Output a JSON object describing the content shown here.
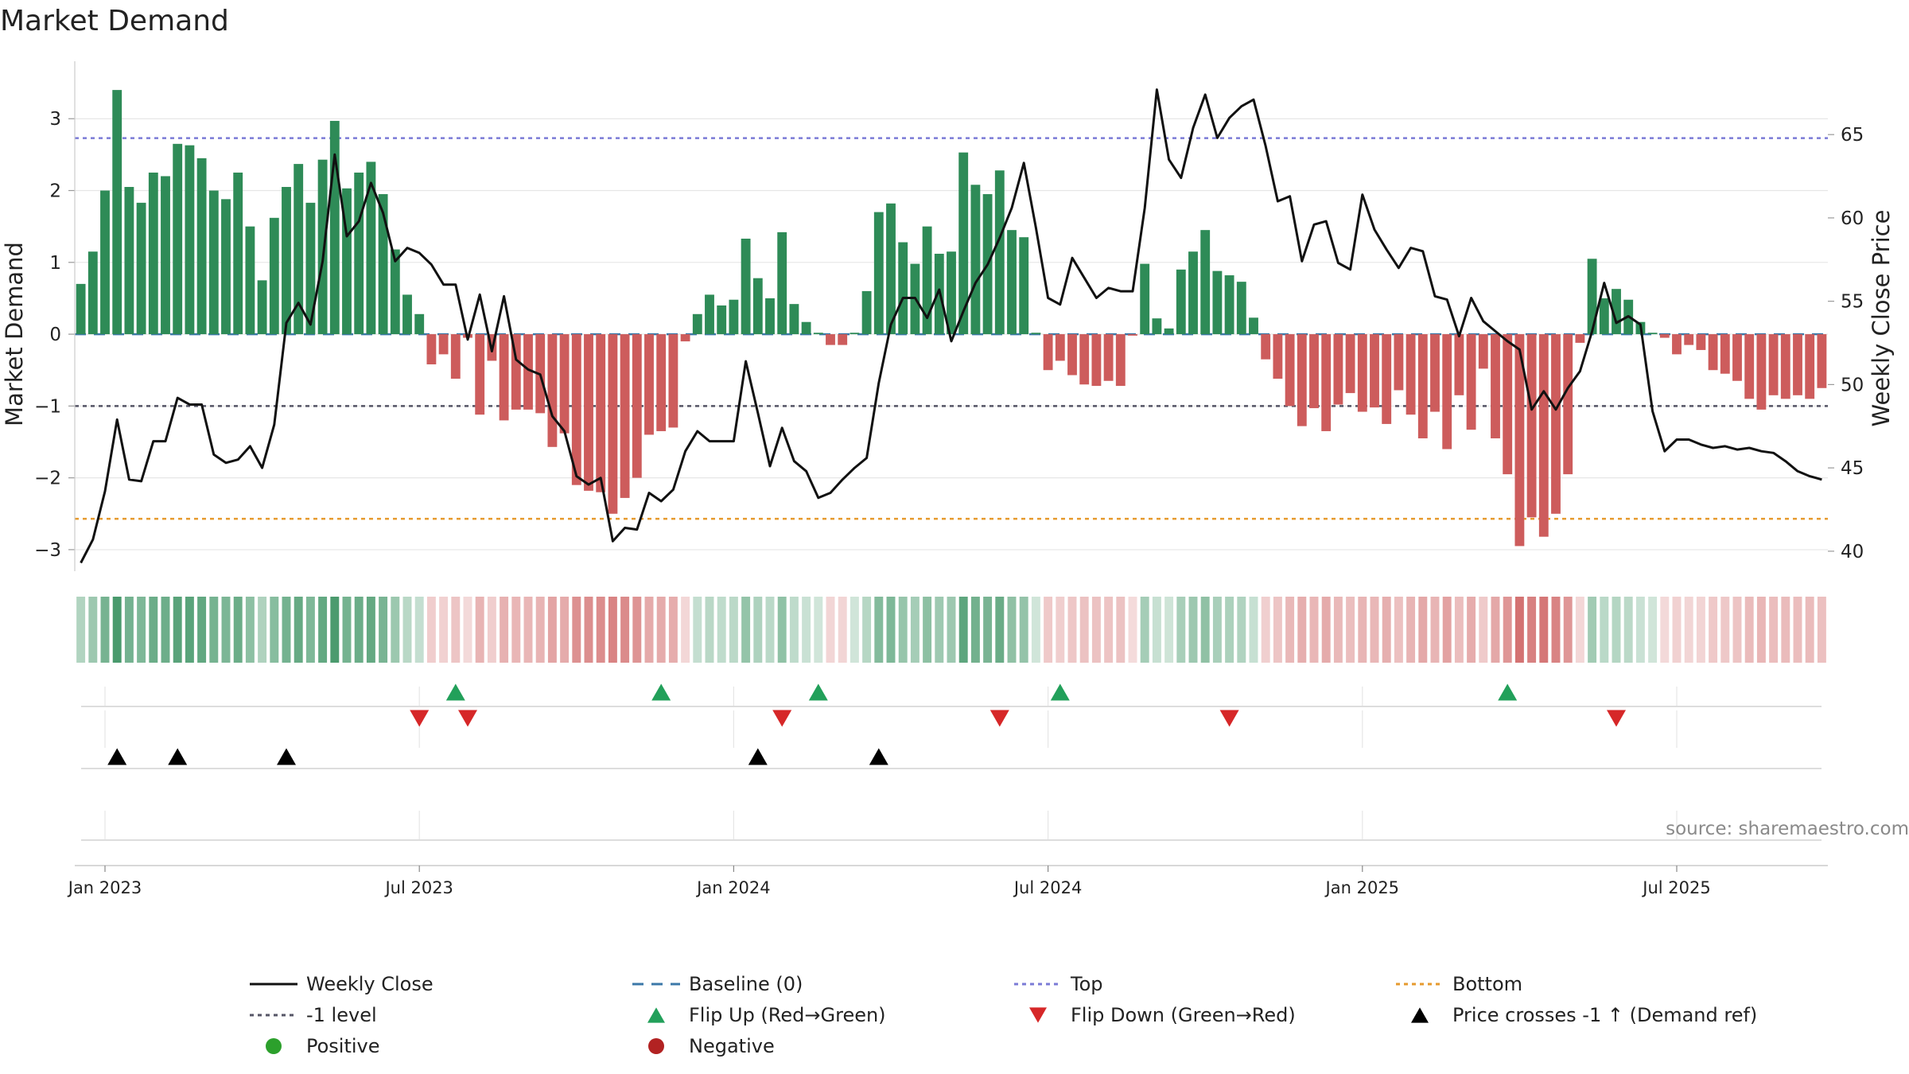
{
  "chart_data": {
    "type": "bar",
    "title": "Market Demand",
    "ylabel": "Market Demand",
    "ylabel_right": "Weekly Close Price",
    "source": "source: sharemaestro.com",
    "ylim": [
      -3.3,
      3.8
    ],
    "y2lim": [
      38.8,
      69.4
    ],
    "yticks": [
      {
        "v": -3,
        "label": "−3"
      },
      {
        "v": -2,
        "label": "−2"
      },
      {
        "v": -1,
        "label": "−1"
      },
      {
        "v": 0,
        "label": "0"
      },
      {
        "v": 1,
        "label": "1"
      },
      {
        "v": 2,
        "label": "2"
      },
      {
        "v": 3,
        "label": "3"
      }
    ],
    "y2ticks": [
      {
        "v": 40,
        "label": "40"
      },
      {
        "v": 45,
        "label": "45"
      },
      {
        "v": 50,
        "label": "50"
      },
      {
        "v": 55,
        "label": "55"
      },
      {
        "v": 60,
        "label": "60"
      },
      {
        "v": 65,
        "label": "65"
      }
    ],
    "xticks": [
      {
        "week": 2,
        "label": "Jan 2023"
      },
      {
        "week": 28,
        "label": "Jul 2023"
      },
      {
        "week": 54,
        "label": "Jan 2024"
      },
      {
        "week": 80,
        "label": "Jul 2024"
      },
      {
        "week": 106,
        "label": "Jan 2025"
      },
      {
        "week": 132,
        "label": "Jul 2025"
      }
    ],
    "reference_lines": {
      "top": 2.73,
      "bottom": -2.57,
      "minus_one_level": -1,
      "baseline": 0
    },
    "demand": [
      0.7,
      1.15,
      2.0,
      3.4,
      2.05,
      1.83,
      2.25,
      2.2,
      2.65,
      2.63,
      2.45,
      2.0,
      1.88,
      2.25,
      1.5,
      0.75,
      1.62,
      2.05,
      2.37,
      1.83,
      2.43,
      2.97,
      2.03,
      2.25,
      2.4,
      1.95,
      1.18,
      0.55,
      0.28,
      -0.42,
      -0.28,
      -0.62,
      -0.05,
      -1.12,
      -0.37,
      -1.2,
      -1.05,
      -1.05,
      -1.1,
      -1.57,
      -1.38,
      -2.1,
      -2.18,
      -2.2,
      -2.5,
      -2.28,
      -2.0,
      -1.4,
      -1.35,
      -1.3,
      -0.1,
      0.28,
      0.55,
      0.4,
      0.48,
      1.33,
      0.78,
      0.5,
      1.42,
      0.42,
      0.17,
      0.02,
      -0.15,
      -0.15,
      0.02,
      0.6,
      1.7,
      1.82,
      1.28,
      0.98,
      1.5,
      1.12,
      1.15,
      2.53,
      2.08,
      1.95,
      2.28,
      1.45,
      1.35,
      0.02,
      -0.5,
      -0.37,
      -0.57,
      -0.7,
      -0.72,
      -0.65,
      -0.72,
      -0.02,
      0.98,
      0.22,
      0.08,
      0.9,
      1.15,
      1.45,
      0.88,
      0.82,
      0.73,
      0.23,
      -0.35,
      -0.62,
      -1.0,
      -1.28,
      -1.03,
      -1.35,
      -0.98,
      -0.82,
      -1.08,
      -1.02,
      -1.25,
      -0.78,
      -1.12,
      -1.45,
      -1.08,
      -1.6,
      -0.85,
      -1.33,
      -0.48,
      -1.45,
      -1.95,
      -2.95,
      -2.55,
      -2.82,
      -2.5,
      -1.95,
      -0.12,
      1.05,
      0.5,
      0.63,
      0.48,
      0.17,
      0.02,
      -0.05,
      -0.28,
      -0.15,
      -0.22,
      -0.5,
      -0.55,
      -0.65,
      -0.9,
      -1.05,
      -0.85,
      -0.9,
      -0.85,
      -0.9,
      -0.75
    ],
    "price": [
      39.3,
      40.7,
      43.6,
      47.9,
      44.3,
      44.2,
      46.6,
      46.6,
      49.2,
      48.8,
      48.8,
      45.8,
      45.3,
      45.5,
      46.3,
      45.0,
      47.6,
      53.7,
      54.9,
      53.6,
      57.4,
      63.8,
      58.9,
      59.8,
      62.1,
      60.3,
      57.4,
      58.2,
      57.9,
      57.2,
      56.0,
      56.0,
      52.7,
      55.4,
      52.0,
      55.3,
      51.5,
      50.9,
      50.6,
      48.1,
      47.2,
      44.5,
      44.0,
      44.4,
      40.6,
      41.4,
      41.3,
      43.5,
      43.0,
      43.7,
      46.0,
      47.2,
      46.6,
      46.6,
      46.6,
      51.4,
      48.3,
      45.1,
      47.4,
      45.4,
      44.8,
      43.2,
      43.5,
      44.3,
      45.0,
      45.6,
      50.1,
      53.6,
      55.2,
      55.2,
      54.0,
      55.7,
      52.6,
      54.4,
      56.1,
      57.2,
      58.8,
      60.6,
      63.3,
      59.4,
      55.2,
      54.8,
      57.6,
      56.4,
      55.2,
      55.8,
      55.6,
      55.6,
      60.6,
      67.7,
      63.5,
      62.4,
      65.4,
      67.4,
      64.8,
      66.0,
      66.7,
      67.1,
      64.3,
      61.0,
      61.3,
      57.4,
      59.6,
      59.8,
      57.3,
      56.9,
      61.4,
      59.3,
      58.1,
      57.0,
      58.2,
      58.0,
      55.3,
      55.1,
      52.9,
      55.2,
      53.8,
      53.2,
      52.6,
      52.1,
      48.5,
      49.6,
      48.5,
      49.8,
      50.8,
      53.2,
      56.1,
      53.7,
      54.1,
      53.6,
      48.4,
      46.0,
      46.7,
      46.7,
      46.4,
      46.2,
      46.3,
      46.1,
      46.2,
      46.0,
      45.9,
      45.4,
      44.8,
      44.5,
      44.3
    ],
    "events": {
      "flip_up": [
        31,
        48,
        61,
        81,
        118
      ],
      "flip_down": [
        28,
        32,
        58,
        76,
        95,
        127
      ],
      "price_cross": [
        3,
        8,
        17,
        56,
        66
      ]
    },
    "legend": {
      "weekly_close": "Weekly Close",
      "baseline": "Baseline (0)",
      "top": "Top",
      "bottom": "Bottom",
      "minus_one": "-1 level",
      "flip_up": "Flip Up (Red→Green)",
      "flip_down": "Flip Down (Green→Red)",
      "price_cross": "Price crosses -1 ↑ (Demand ref)",
      "positive": "Positive",
      "negative": "Negative"
    },
    "colors": {
      "positive": "#2e8b57",
      "negative": "#cd5c5c",
      "price": "#111111",
      "top": "#7b7bd6",
      "bottom": "#e69a2e",
      "minus_one": "#555566",
      "baseline": "#3b78a8",
      "flip_up": "#22a05a",
      "flip_down": "#d62728",
      "price_cross": "#000000",
      "positive_dot": "#2ca02c",
      "negative_dot": "#b22222",
      "grid": "#e6e6e6",
      "axis": "#cccccc"
    }
  }
}
